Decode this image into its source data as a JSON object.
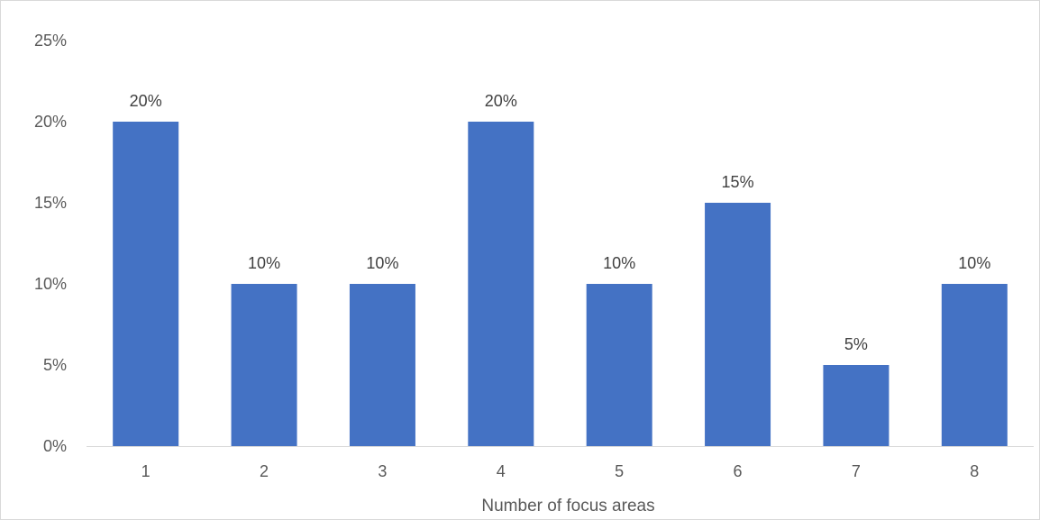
{
  "chart_data": {
    "type": "bar",
    "title": "",
    "xlabel": "Number of focus areas",
    "ylabel": "",
    "categories": [
      "1",
      "2",
      "3",
      "4",
      "5",
      "6",
      "7",
      "8"
    ],
    "values": [
      20,
      10,
      10,
      20,
      10,
      15,
      5,
      10
    ],
    "value_format": "percent",
    "data_labels": [
      "20%",
      "10%",
      "10%",
      "20%",
      "10%",
      "15%",
      "5%",
      "10%"
    ],
    "ylim": [
      0,
      25
    ],
    "yticks": [
      0,
      5,
      10,
      15,
      20,
      25
    ],
    "ytick_labels": [
      "0%",
      "5%",
      "10%",
      "15%",
      "20%",
      "25%"
    ],
    "grid": false,
    "legend": "none",
    "bar_color": "#4472C4"
  }
}
